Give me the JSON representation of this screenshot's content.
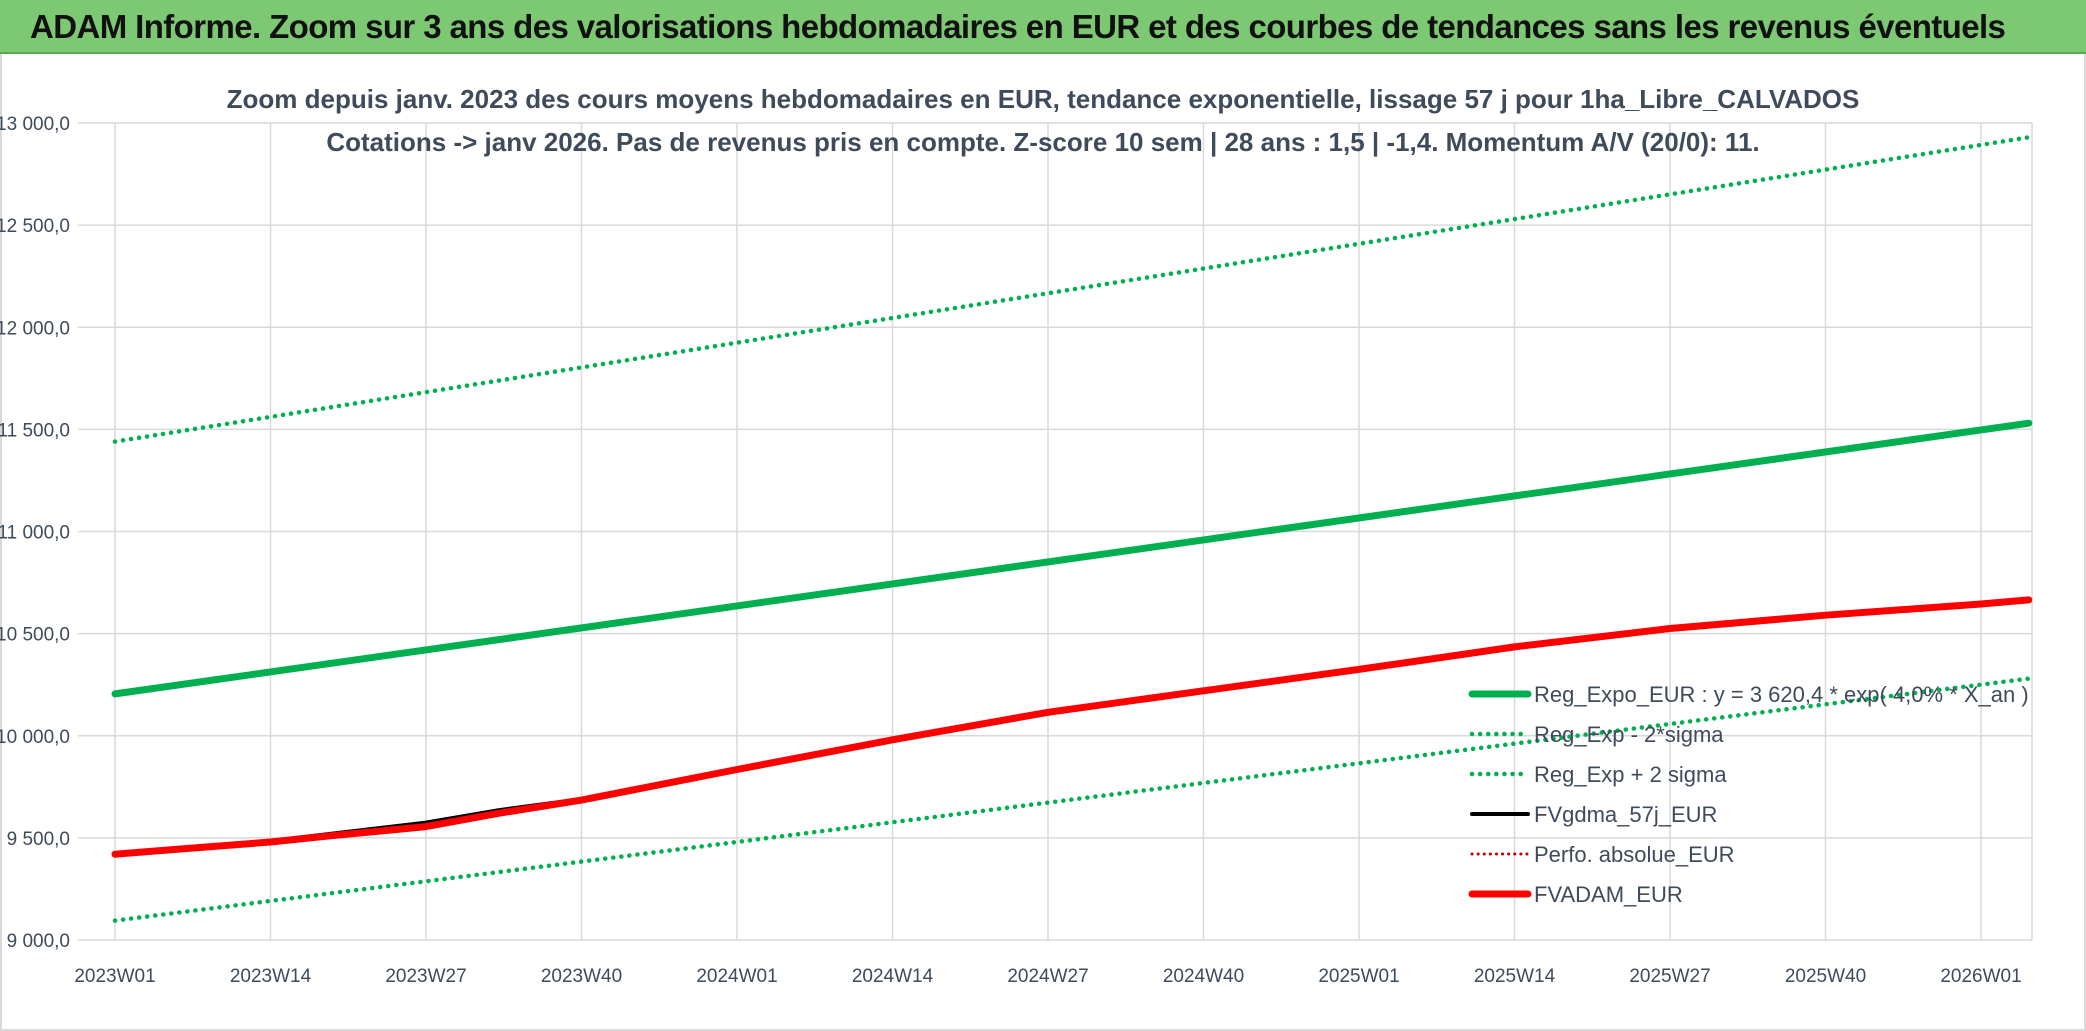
{
  "banner": {
    "title": "ADAM Informe. Zoom sur 3 ans des valorisations hebdomadaires en EUR et des courbes de tendances sans les revenus éventuels"
  },
  "colors": {
    "banner_bg": "#7dc872",
    "trend_green": "#00b050",
    "fv57": "#000000",
    "fvadam": "#ff0000",
    "perfo": "#c00000",
    "grid": "#d9d9d9",
    "axis_text": "#3f4a5a"
  },
  "chart_data": {
    "type": "line",
    "title": "Zoom depuis janv. 2023 des cours moyens hebdomadaires en EUR, tendance exponentielle, lissage 57 j pour 1ha_Libre_CALVADOS",
    "subtitle": "Cotations -> janv 2026. Pas de revenus pris en compte. Z-score 10 sem | 28 ans : 1,5 | -1,4. Momentum A/V (20/0): 11.",
    "x_tick_labels": [
      "2023W01",
      "2023W14",
      "2023W27",
      "2023W40",
      "2024W01",
      "2024W14",
      "2024W27",
      "2024W40",
      "2025W01",
      "2025W14",
      "2025W27",
      "2025W40",
      "2026W01"
    ],
    "x_range_weeks": [
      0,
      160
    ],
    "y_tick_values": [
      9000,
      9500,
      10000,
      10500,
      11000,
      11500,
      12000,
      12500,
      13000
    ],
    "y_tick_labels": [
      "9 000,0",
      "9 500,0",
      "10 000,0",
      "10 500,0",
      "11 000,0",
      "11 500,0",
      "12 000,0",
      "12 500,0",
      "13 000,0"
    ],
    "ylim": [
      9000,
      13000
    ],
    "legend_position": "right",
    "series": [
      {
        "name": "Reg_Expo_EUR : y = 3 620,4 * exp( 4,0% * X_an )",
        "style": "solid-thick",
        "color": "#00b050",
        "x": [
          0,
          160
        ],
        "y": [
          10205,
          11530
        ]
      },
      {
        "name": "Reg_Exp - 2*sigma",
        "style": "dotted",
        "color": "#00b050",
        "x": [
          0,
          160
        ],
        "y": [
          9095,
          10280
        ]
      },
      {
        "name": "Reg_Exp + 2 sigma",
        "style": "dotted",
        "color": "#00b050",
        "x": [
          0,
          160
        ],
        "y": [
          11440,
          12930
        ]
      },
      {
        "name": "FVgdma_57j_EUR",
        "style": "solid",
        "color": "#000000",
        "x": [
          0,
          6,
          13,
          18,
          26,
          32,
          39,
          52,
          65,
          78,
          91,
          104,
          117,
          130,
          143,
          156,
          160
        ],
        "y": [
          9420,
          9450,
          9485,
          9520,
          9575,
          9635,
          9690,
          9840,
          9985,
          10120,
          10225,
          10330,
          10440,
          10530,
          10590,
          10645,
          10660
        ]
      },
      {
        "name": "Perfo. absolue_EUR",
        "style": "dotted-thin",
        "color": "#c00000",
        "x": [],
        "y": []
      },
      {
        "name": "FVADAM_EUR",
        "style": "solid-thick",
        "color": "#ff0000",
        "x": [
          0,
          6,
          13,
          18,
          26,
          32,
          39,
          52,
          65,
          78,
          91,
          104,
          117,
          130,
          143,
          156,
          160
        ],
        "y": [
          9420,
          9448,
          9480,
          9510,
          9555,
          9620,
          9685,
          9835,
          9980,
          10115,
          10220,
          10325,
          10435,
          10525,
          10590,
          10645,
          10665
        ]
      }
    ]
  }
}
